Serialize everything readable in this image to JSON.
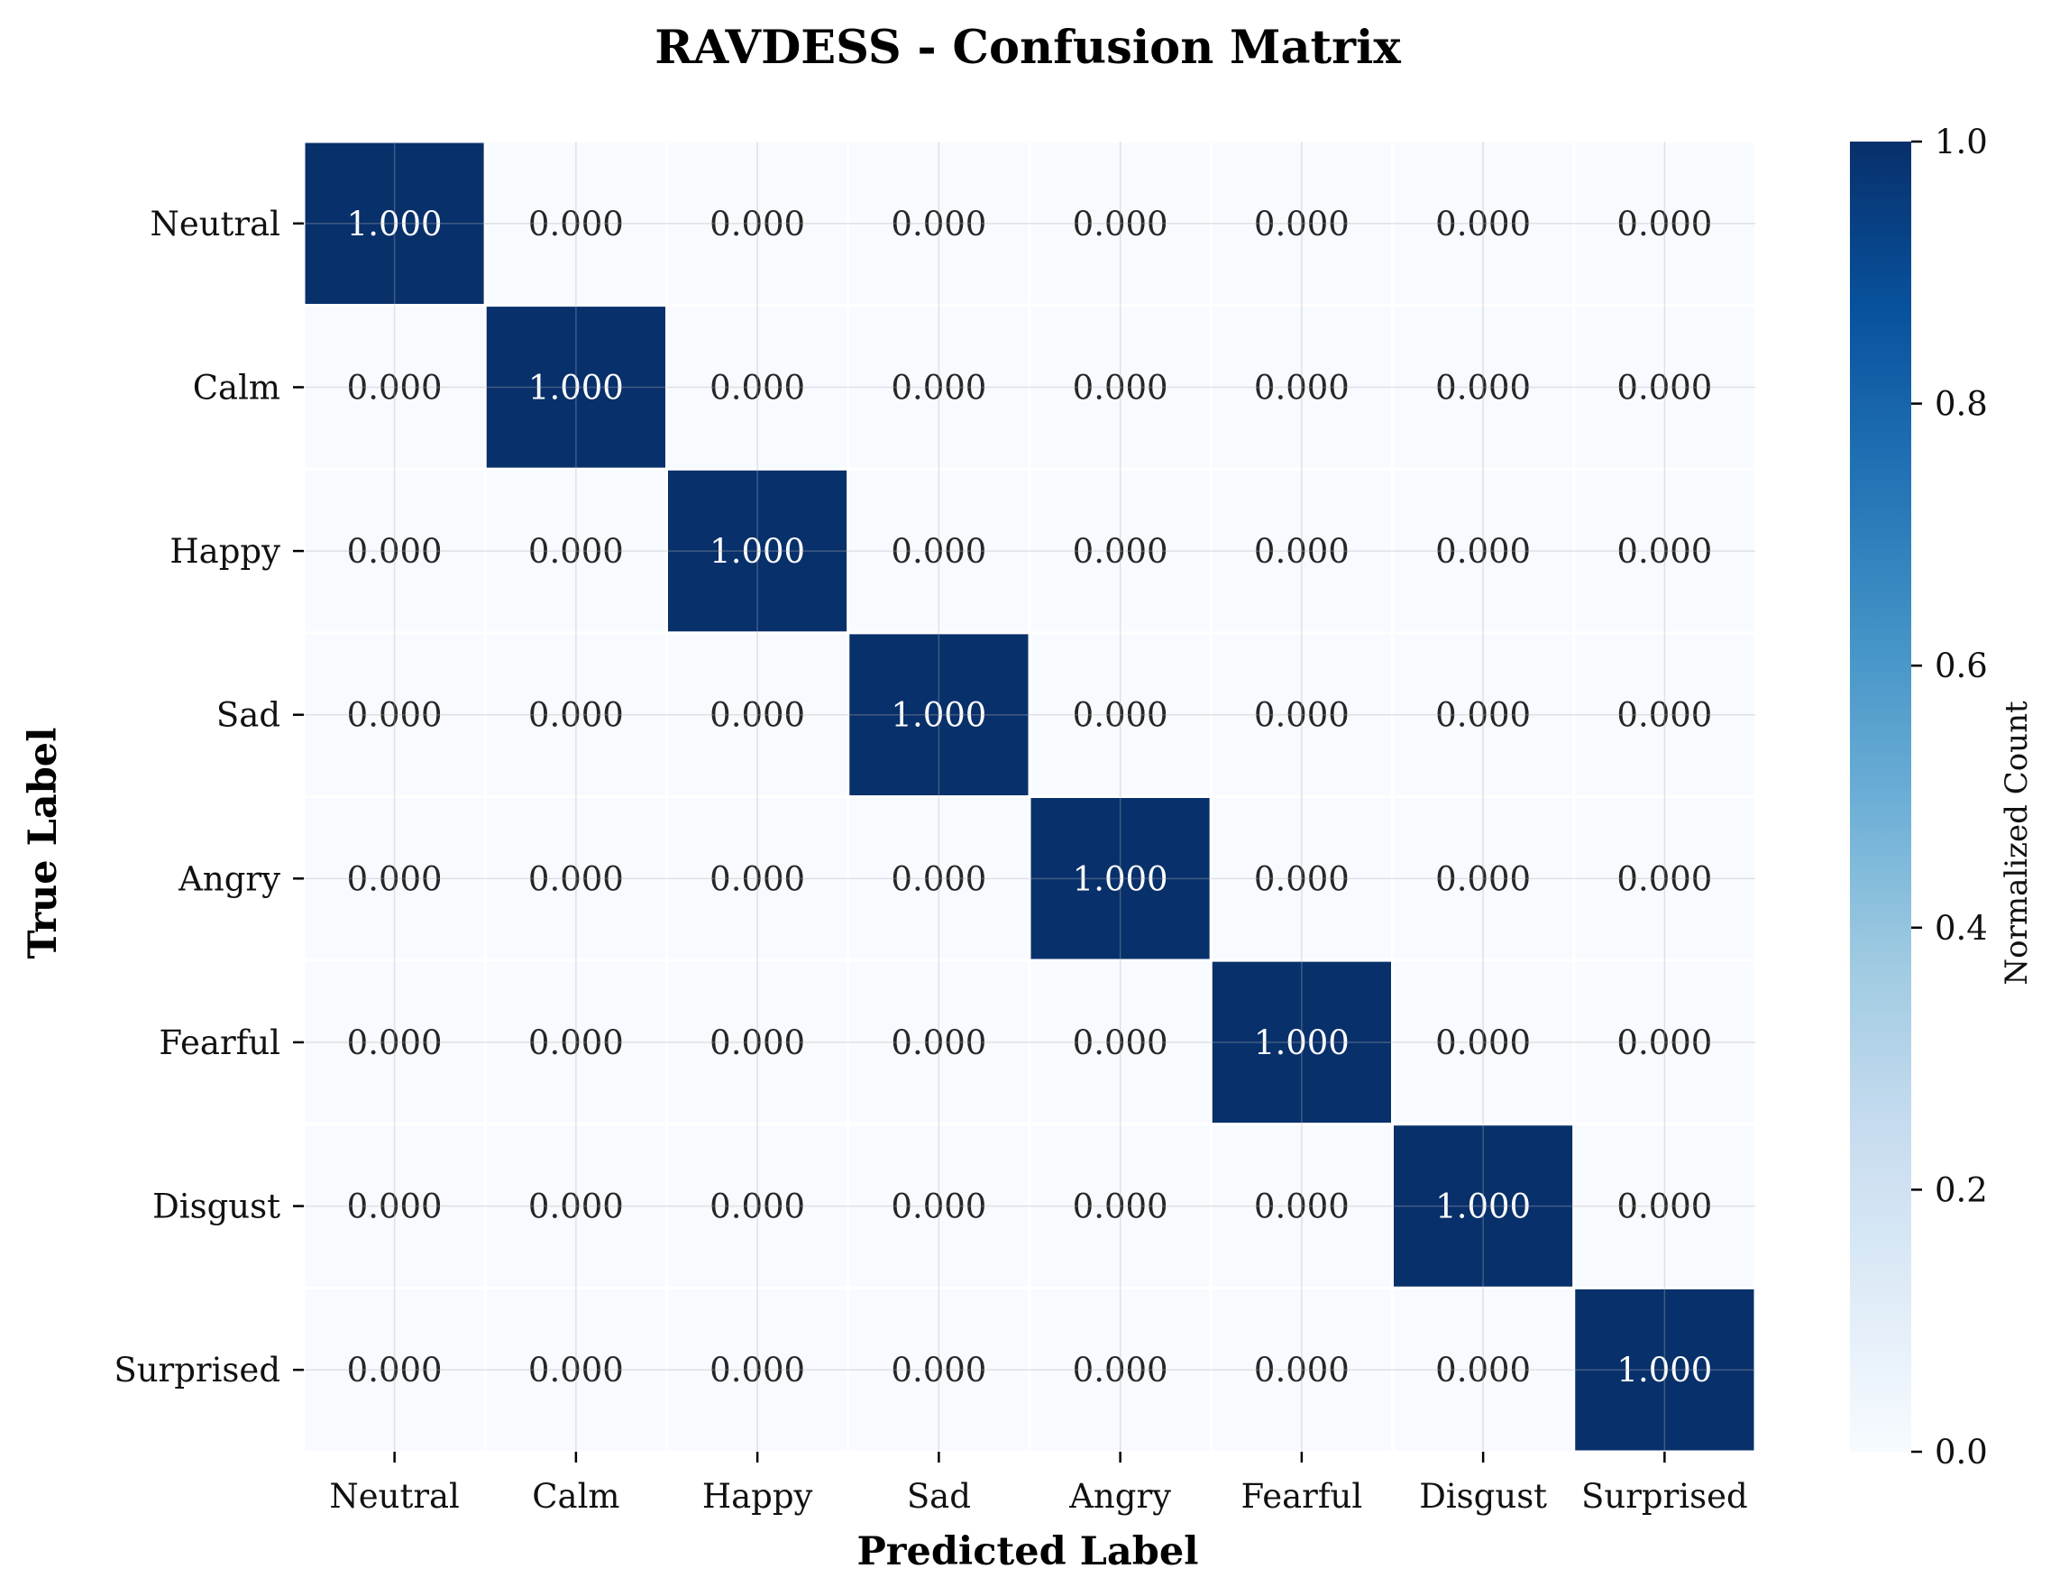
{
  "chart_data": {
    "type": "heatmap",
    "title": "RAVDESS - Confusion Matrix",
    "xlabel": "Predicted Label",
    "ylabel": "True Label",
    "x_categories": [
      "Neutral",
      "Calm",
      "Happy",
      "Sad",
      "Angry",
      "Fearful",
      "Disgust",
      "Surprised"
    ],
    "y_categories": [
      "Neutral",
      "Calm",
      "Happy",
      "Sad",
      "Angry",
      "Fearful",
      "Disgust",
      "Surprised"
    ],
    "values": [
      [
        1.0,
        0.0,
        0.0,
        0.0,
        0.0,
        0.0,
        0.0,
        0.0
      ],
      [
        0.0,
        1.0,
        0.0,
        0.0,
        0.0,
        0.0,
        0.0,
        0.0
      ],
      [
        0.0,
        0.0,
        1.0,
        0.0,
        0.0,
        0.0,
        0.0,
        0.0
      ],
      [
        0.0,
        0.0,
        0.0,
        1.0,
        0.0,
        0.0,
        0.0,
        0.0
      ],
      [
        0.0,
        0.0,
        0.0,
        0.0,
        1.0,
        0.0,
        0.0,
        0.0
      ],
      [
        0.0,
        0.0,
        0.0,
        0.0,
        0.0,
        1.0,
        0.0,
        0.0
      ],
      [
        0.0,
        0.0,
        0.0,
        0.0,
        0.0,
        0.0,
        1.0,
        0.0
      ],
      [
        0.0,
        0.0,
        0.0,
        0.0,
        0.0,
        0.0,
        0.0,
        1.0
      ]
    ],
    "value_format_decimals": 3,
    "colormap": "Blues",
    "colormap_stops": [
      "#f7fbff",
      "#deebf7",
      "#c6dbef",
      "#9ecae1",
      "#6baed6",
      "#4292c6",
      "#2171b5",
      "#08519c",
      "#08306b"
    ],
    "colorbar": {
      "label": "Normalized Count",
      "range": [
        0.0,
        1.0
      ],
      "ticks": [
        "0.0",
        "0.2",
        "0.4",
        "0.6",
        "0.8",
        "1.0"
      ]
    },
    "grid": true
  }
}
